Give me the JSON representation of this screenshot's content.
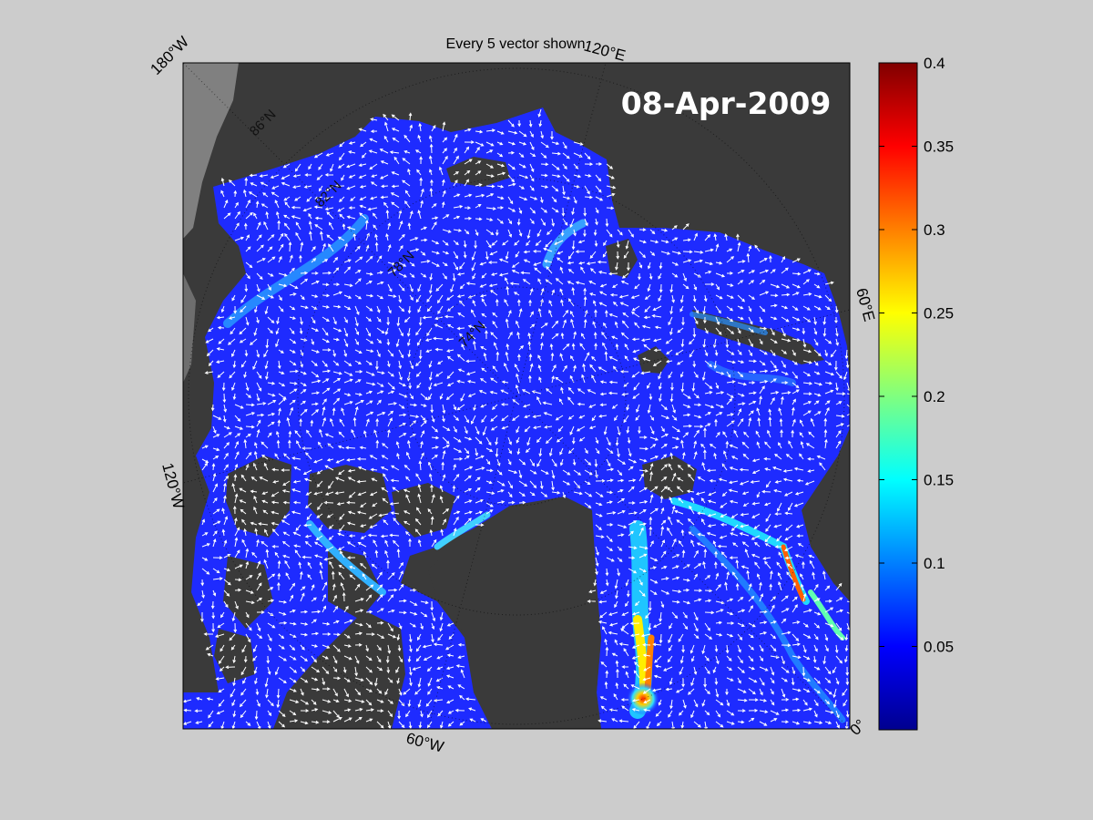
{
  "title": "Every 5 vector shown",
  "date": "08-Apr-2009",
  "longitude_labels": {
    "top_left": "180°W",
    "top_right": "120°E",
    "right": "60°E",
    "left": "120°W",
    "bottom": "60°W",
    "bottom_right": "0°"
  },
  "latitude_labels": [
    "86°N",
    "82°N",
    "78°N",
    "74°N"
  ],
  "colorbar": {
    "colormap": "jet",
    "range": [
      0,
      0.4
    ],
    "ticks": [
      "0.4",
      "0.35",
      "0.3",
      "0.25",
      "0.2",
      "0.15",
      "0.1",
      "0.05"
    ]
  },
  "colors": {
    "figure_background": "#cccccc",
    "land": "#3a3a3a",
    "unmapped_land": "#808080",
    "ice_low": "#1e2bff",
    "vector": "#ffffff"
  }
}
